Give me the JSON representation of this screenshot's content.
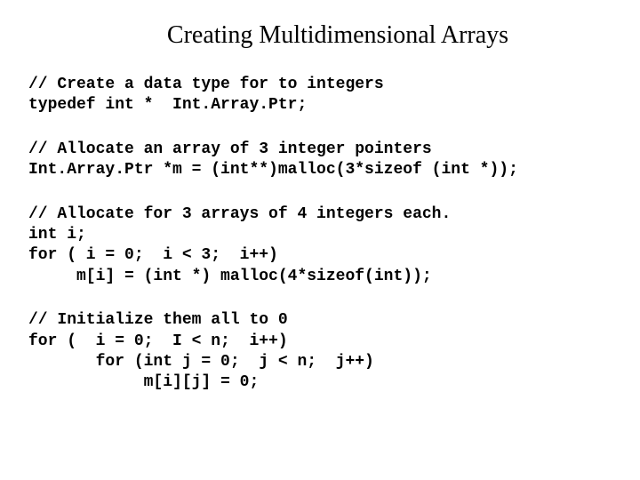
{
  "title": "Creating Multidimensional Arrays",
  "blocks": {
    "b1": {
      "l1": "// Create a data type for to integers",
      "l2": "typedef int *  Int.Array.Ptr;"
    },
    "b2": {
      "l1": "// Allocate an array of 3 integer pointers",
      "l2": "Int.Array.Ptr *m = (int**)malloc(3*sizeof (int *));"
    },
    "b3": {
      "l1": "// Allocate for 3 arrays of 4 integers each.",
      "l2": "int i;",
      "l3": "for ( i = 0;  i < 3;  i++)",
      "l4": "     m[i] = (int *) malloc(4*sizeof(int));"
    },
    "b4": {
      "l1": "// Initialize them all to 0",
      "l2": "for (  i = 0;  I < n;  i++)",
      "l3": "       for (int j = 0;  j < n;  j++)",
      "l4": "            m[i][j] = 0;"
    }
  },
  "style": {
    "background_color": "#ffffff",
    "text_color": "#000000",
    "title_font": "Times New Roman",
    "title_fontsize": 28,
    "code_font": "Courier New",
    "code_fontsize": 18,
    "code_weight": "bold"
  }
}
